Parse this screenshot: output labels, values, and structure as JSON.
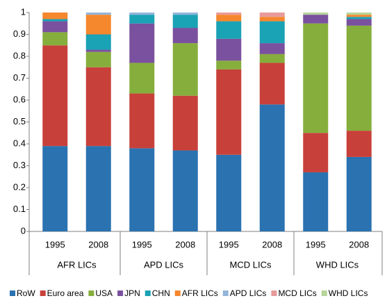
{
  "chart_data": {
    "type": "stacked_bar",
    "categories": [
      "1995",
      "2008",
      "1995",
      "2008",
      "1995",
      "2008",
      "1995",
      "2008"
    ],
    "groups": [
      "AFR LICs",
      "APD LICs",
      "MCD LICs",
      "WHD LICs"
    ],
    "ylim": [
      0,
      1
    ],
    "yticks": [
      0,
      0.1,
      0.2,
      0.3,
      0.4,
      0.5,
      0.6,
      0.7,
      0.8,
      0.9,
      1
    ],
    "grid": false,
    "legend": "bottom",
    "series": [
      {
        "name": "RoW",
        "color": "#2a72b0",
        "values": [
          0.39,
          0.39,
          0.38,
          0.37,
          0.35,
          0.58,
          0.27,
          0.34
        ]
      },
      {
        "name": "Euro area",
        "color": "#c8403a",
        "values": [
          0.46,
          0.36,
          0.25,
          0.25,
          0.39,
          0.19,
          0.18,
          0.12
        ]
      },
      {
        "name": "USA",
        "color": "#86ae3c",
        "values": [
          0.06,
          0.07,
          0.14,
          0.24,
          0.04,
          0.04,
          0.5,
          0.48
        ]
      },
      {
        "name": "JPN",
        "color": "#7a519e",
        "values": [
          0.05,
          0.01,
          0.18,
          0.07,
          0.1,
          0.05,
          0.04,
          0.03
        ]
      },
      {
        "name": "CHN",
        "color": "#1aa2b5",
        "values": [
          0.01,
          0.07,
          0.04,
          0.06,
          0.08,
          0.1,
          0,
          0.01
        ]
      },
      {
        "name": "AFR LICs",
        "color": "#f5872d",
        "values": [
          0.03,
          0.09,
          0,
          0,
          0.03,
          0.02,
          0,
          0.01
        ]
      },
      {
        "name": "APD LICs",
        "color": "#93b5d9",
        "values": [
          0,
          0.01,
          0.01,
          0.01,
          0,
          0,
          0,
          0
        ]
      },
      {
        "name": "MCD LICs",
        "color": "#e89b9a",
        "values": [
          0,
          0,
          0,
          0,
          0.01,
          0.02,
          0,
          0
        ]
      },
      {
        "name": "WHD LICs",
        "color": "#b6d59b",
        "values": [
          0,
          0,
          0,
          0,
          0,
          0,
          0.01,
          0.01
        ]
      }
    ]
  }
}
